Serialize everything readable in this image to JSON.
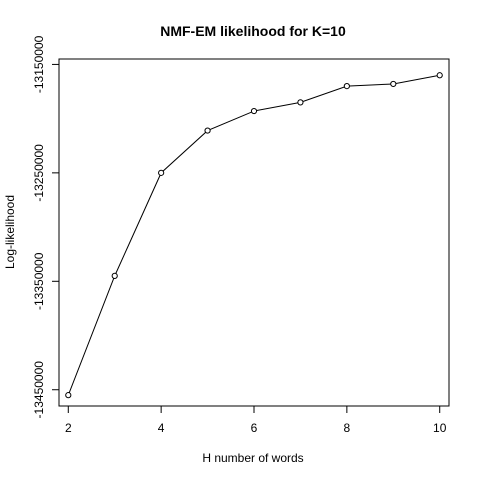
{
  "chart_data": {
    "type": "line",
    "title": "NMF-EM likelihood for K=10",
    "xlabel": "H number of words",
    "ylabel": "Log-likelihood",
    "x": [
      2,
      3,
      4,
      5,
      6,
      7,
      8,
      9,
      10
    ],
    "series": [
      {
        "values": [
          -13455,
          -13345,
          -13250,
          -13211,
          -13193,
          -13185,
          -13170,
          -13168,
          -13160
        ]
      }
    ],
    "xlim": [
      1.8,
      10.2
    ],
    "ylim": [
      -13465,
      -13145
    ],
    "x_ticks": [
      2,
      4,
      6,
      8,
      10
    ],
    "y_ticks": [
      -13450,
      -13350,
      -13250,
      -13150
    ],
    "x_tick_labels": [
      "2",
      "4",
      "6",
      "8",
      "10"
    ],
    "y_tick_labels": [
      "-13450000",
      "-13350000",
      "-13250000",
      "-13150000"
    ],
    "grid": false,
    "markers": "open-circle",
    "line_color": "#000000"
  }
}
